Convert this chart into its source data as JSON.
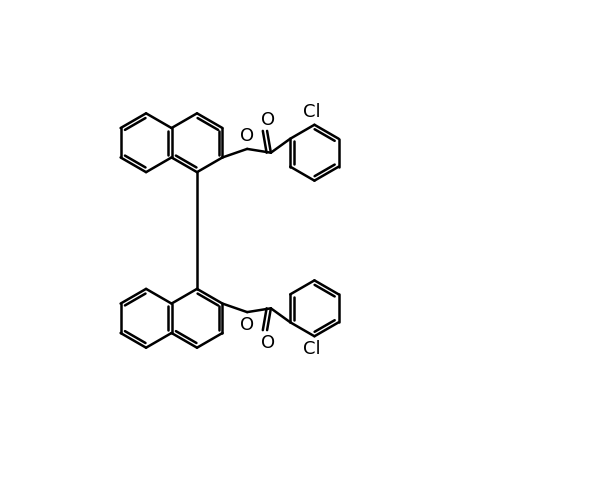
{
  "background_color": "#ffffff",
  "line_color": "#000000",
  "line_width": 1.8,
  "font_size": 13,
  "figsize": [
    6.1,
    4.8
  ],
  "dpi": 100,
  "xlim": [
    0,
    10
  ],
  "ylim": [
    0,
    10
  ]
}
